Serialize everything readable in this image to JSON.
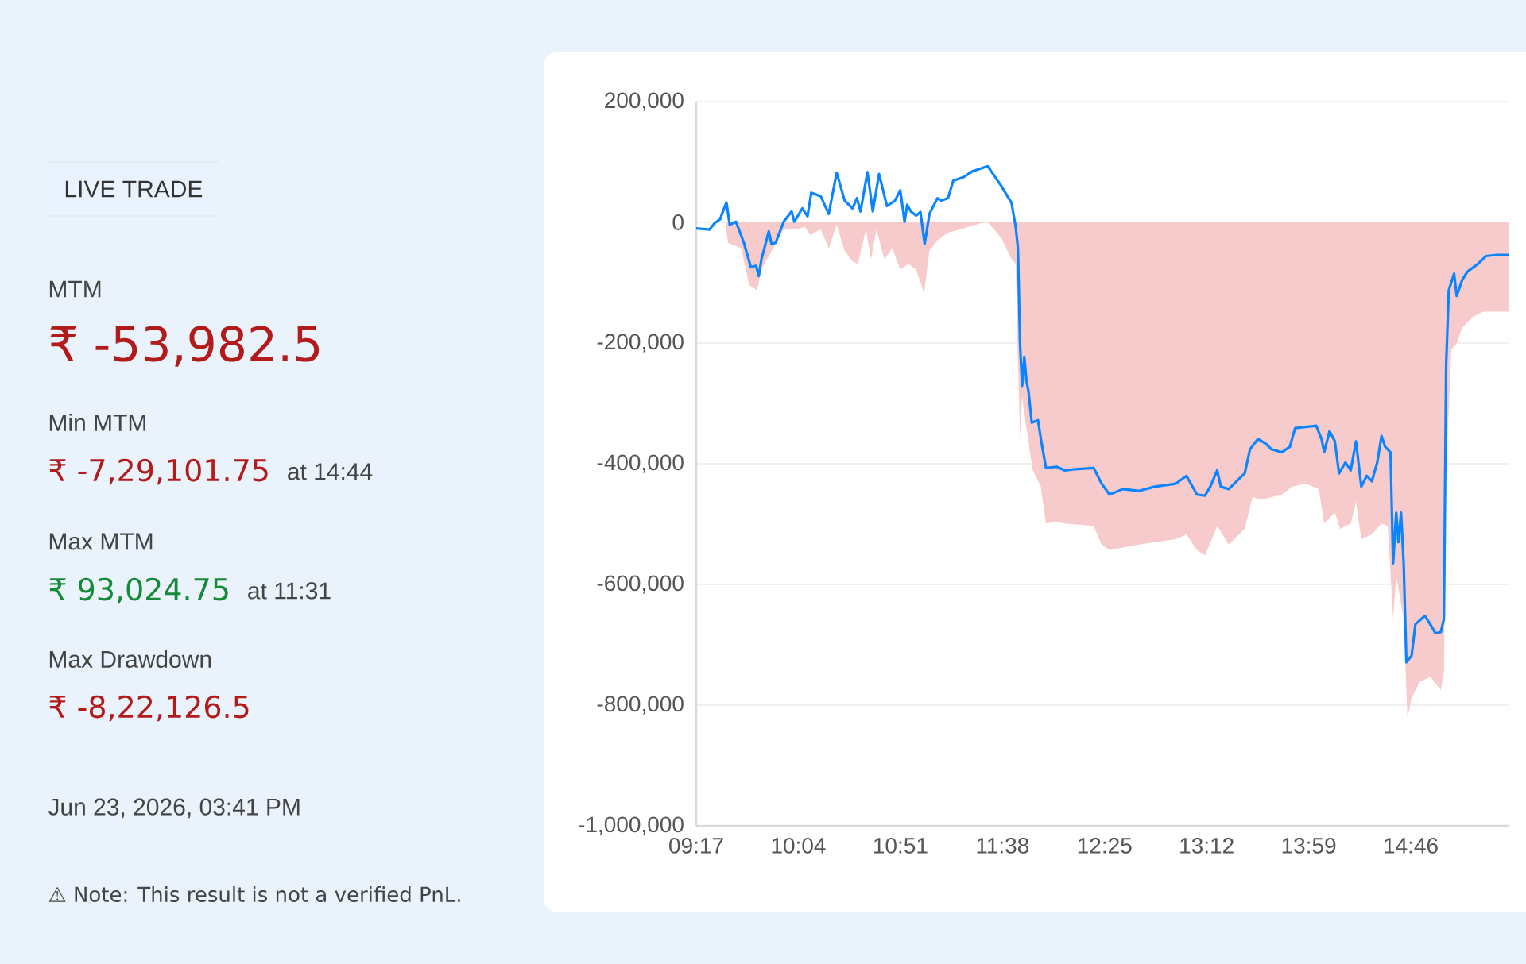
{
  "chart_data": [
    {
      "type": "other",
      "annotations": [
        "LIVE TRADE",
        "MTM",
        "₹ -53,982.5",
        "Min MTM",
        "₹ -7,29,101.75",
        "at 14:44",
        "Max MTM",
        "₹ 93,024.75",
        "at 11:31",
        "Max Drawdown",
        "₹ -8,22,126.5",
        "Jun 23, 2026, 03:41 PM",
        "⚠ Note: This result is not a verified PnL."
      ]
    },
    {
      "type": "line",
      "grid": "y",
      "xlim": [
        9.2833,
        15.5167
      ],
      "ylim": [
        -1000000,
        200000
      ],
      "xticks": [
        {
          "value": 9.2833,
          "label": "09:17"
        },
        {
          "value": 10.0667,
          "label": "10:04"
        },
        {
          "value": 10.85,
          "label": "10:51"
        },
        {
          "value": 11.6333,
          "label": "11:38"
        },
        {
          "value": 12.4167,
          "label": "12:25"
        },
        {
          "value": 13.2,
          "label": "13:12"
        },
        {
          "value": 13.9833,
          "label": "13:59"
        },
        {
          "value": 14.7667,
          "label": "14:46"
        }
      ],
      "yticks": [
        {
          "value": 200000,
          "label": "200,000"
        },
        {
          "value": 0,
          "label": "0"
        },
        {
          "value": -200000,
          "label": "-200,000"
        },
        {
          "value": -400000,
          "label": "-400,000"
        },
        {
          "value": -600000,
          "label": "-600,000"
        },
        {
          "value": -800000,
          "label": "-800,000"
        },
        {
          "value": -1000000,
          "label": "-1,000,000"
        }
      ],
      "series": [
        {
          "type": "area",
          "color": "#f7cbcb",
          "x": [
            9.2833,
            9.507,
            9.527,
            9.629,
            9.69,
            9.751,
            9.784,
            9.873,
            9.954,
            10.036,
            10.117,
            10.158,
            10.239,
            10.3,
            10.361,
            10.422,
            10.483,
            10.524,
            10.585,
            10.625,
            10.666,
            10.727,
            10.788,
            10.849,
            10.91,
            10.971,
            11.032,
            11.073,
            11.134,
            11.215,
            11.337,
            11.459,
            11.52,
            11.622,
            11.703,
            11.735,
            11.752,
            11.768,
            11.784,
            11.817,
            11.866,
            11.927,
            11.967,
            12.049,
            12.11,
            12.333,
            12.394,
            12.455,
            12.679,
            12.964,
            13.045,
            13.126,
            13.187,
            13.281,
            13.37,
            13.492,
            13.553,
            13.615,
            13.777,
            13.858,
            13.96,
            14.062,
            14.102,
            14.184,
            14.224,
            14.306,
            14.346,
            14.387,
            14.468,
            14.542,
            14.59,
            14.631,
            14.655,
            14.712,
            14.741,
            14.773,
            14.834,
            14.916,
            14.997,
            15.021,
            15.038,
            15.078,
            15.119,
            15.16,
            15.241,
            15.322,
            15.5167
          ],
          "values": [
            0,
            0,
            -34000,
            -43000,
            -104000,
            -113000,
            -78000,
            -43000,
            -12000,
            -12000,
            -8000,
            -21000,
            -12000,
            -43000,
            -4000,
            -47000,
            -65000,
            -69000,
            -12000,
            -61000,
            -12000,
            -61000,
            -43000,
            -78000,
            -69000,
            -78000,
            -118000,
            -47000,
            -30000,
            -17000,
            -10000,
            -2000,
            0,
            -25000,
            -61000,
            -69000,
            -236000,
            -354000,
            -289000,
            -341000,
            -411000,
            -438000,
            -499000,
            -496000,
            -499000,
            -503000,
            -534000,
            -543000,
            -534000,
            -525000,
            -517000,
            -543000,
            -552000,
            -503000,
            -534000,
            -508000,
            -455000,
            -460000,
            -451000,
            -438000,
            -433000,
            -442000,
            -499000,
            -481000,
            -508000,
            -499000,
            -464000,
            -525000,
            -517000,
            -499000,
            -503000,
            -657000,
            -587000,
            -657000,
            -822000,
            -788000,
            -762000,
            -753000,
            -775000,
            -745000,
            -411000,
            -210000,
            -201000,
            -175000,
            -157000,
            -148000,
            -148000
          ]
        },
        {
          "type": "line",
          "color": "#0a84ff",
          "x": [
            9.2833,
            9.385,
            9.426,
            9.466,
            9.515,
            9.54,
            9.588,
            9.649,
            9.702,
            9.743,
            9.763,
            9.784,
            9.84,
            9.861,
            9.893,
            9.954,
            10.015,
            10.036,
            10.097,
            10.137,
            10.166,
            10.239,
            10.3,
            10.361,
            10.422,
            10.483,
            10.516,
            10.544,
            10.597,
            10.638,
            10.686,
            10.747,
            10.808,
            10.849,
            10.882,
            10.902,
            10.93,
            10.971,
            11.004,
            11.036,
            11.073,
            11.134,
            11.166,
            11.215,
            11.256,
            11.337,
            11.398,
            11.439,
            11.52,
            11.622,
            11.703,
            11.735,
            11.752,
            11.768,
            11.784,
            11.801,
            11.817,
            11.833,
            11.858,
            11.906,
            11.931,
            11.967,
            12.049,
            12.11,
            12.191,
            12.333,
            12.394,
            12.455,
            12.557,
            12.679,
            12.801,
            12.964,
            13.045,
            13.126,
            13.187,
            13.228,
            13.281,
            13.309,
            13.37,
            13.411,
            13.492,
            13.533,
            13.594,
            13.655,
            13.696,
            13.777,
            13.838,
            13.879,
            13.96,
            14.041,
            14.082,
            14.102,
            14.143,
            14.184,
            14.216,
            14.265,
            14.306,
            14.346,
            14.387,
            14.428,
            14.468,
            14.509,
            14.542,
            14.57,
            14.611,
            14.631,
            14.655,
            14.672,
            14.692,
            14.712,
            14.733,
            14.773,
            14.802,
            14.875,
            14.916,
            14.956,
            14.997,
            15.021,
            15.038,
            15.058,
            15.099,
            15.119,
            15.16,
            15.2,
            15.282,
            15.343,
            15.424,
            15.5167
          ],
          "values": [
            -10000,
            -12000,
            -1000,
            5000,
            33000,
            -4000,
            1000,
            -34000,
            -74000,
            -72000,
            -89000,
            -61000,
            -15000,
            -36000,
            -34000,
            1000,
            18000,
            1000,
            23000,
            10000,
            49000,
            43000,
            14000,
            82000,
            36000,
            23000,
            40000,
            18000,
            83000,
            18000,
            80000,
            27000,
            36000,
            53000,
            1000,
            29000,
            18000,
            11000,
            17000,
            -36000,
            14000,
            40000,
            36000,
            40000,
            69000,
            75000,
            84000,
            87000,
            93000,
            61000,
            32000,
            -8000,
            -43000,
            -201000,
            -271000,
            -223000,
            -262000,
            -280000,
            -332000,
            -328000,
            -363000,
            -407000,
            -405000,
            -411000,
            -409000,
            -407000,
            -433000,
            -451000,
            -442000,
            -445000,
            -438000,
            -433000,
            -420000,
            -451000,
            -453000,
            -438000,
            -411000,
            -438000,
            -442000,
            -433000,
            -416000,
            -376000,
            -359000,
            -367000,
            -376000,
            -381000,
            -372000,
            -341000,
            -339000,
            -337000,
            -359000,
            -381000,
            -346000,
            -363000,
            -416000,
            -398000,
            -411000,
            -363000,
            -438000,
            -420000,
            -429000,
            -398000,
            -354000,
            -372000,
            -381000,
            -565000,
            -481000,
            -530000,
            -481000,
            -565000,
            -729000,
            -718000,
            -666000,
            -652000,
            -666000,
            -681000,
            -679000,
            -657000,
            -236000,
            -113000,
            -85000,
            -122000,
            -96000,
            -82000,
            -69000,
            -56000,
            -54000,
            -54000
          ]
        }
      ]
    }
  ]
}
